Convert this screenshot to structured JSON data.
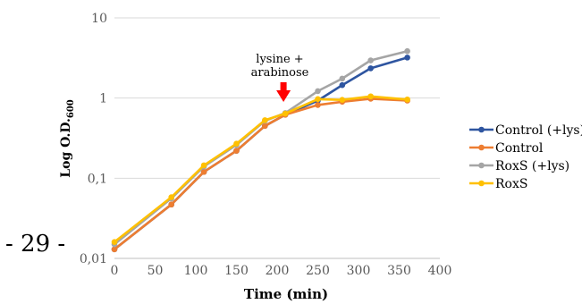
{
  "page_number": "- 29 -",
  "chart_data": {
    "type": "line",
    "title": "",
    "xlabel": "Time (min)",
    "ylabel": {
      "main": "Log O.D.",
      "sub": "600"
    },
    "yscale": "log",
    "xlim": [
      0,
      400
    ],
    "ylim": [
      0.01,
      10
    ],
    "xticks": [
      "0",
      "50",
      "100",
      "150",
      "200",
      "250",
      "300",
      "350",
      "400"
    ],
    "yticks": [
      {
        "value": 0.01,
        "label": "0,01"
      },
      {
        "value": 0.1,
        "label": "0,1"
      },
      {
        "value": 1,
        "label": "1"
      },
      {
        "value": 10,
        "label": "10"
      }
    ],
    "grid": "horizontal",
    "legend_position": "right",
    "annotation": {
      "lines": [
        "lysine +",
        "arabinose"
      ],
      "x": 210,
      "arrow_color": "#ff0000"
    },
    "series": [
      {
        "name": "Control (+lys)",
        "color": "#2e55a0",
        "x": [
          0,
          70,
          110,
          150,
          185,
          210,
          250,
          280,
          315,
          360
        ],
        "y": [
          0.013,
          0.047,
          0.12,
          0.22,
          0.45,
          0.62,
          0.93,
          1.45,
          2.35,
          3.2
        ]
      },
      {
        "name": "Control",
        "color": "#ed7d31",
        "x": [
          0,
          70,
          110,
          150,
          185,
          210,
          250,
          280,
          315,
          360
        ],
        "y": [
          0.013,
          0.047,
          0.12,
          0.22,
          0.45,
          0.62,
          0.82,
          0.9,
          0.98,
          0.93
        ]
      },
      {
        "name": "RoxS (+lys)",
        "color": "#a5a5a5",
        "x": [
          0,
          70,
          110,
          150,
          185,
          210,
          250,
          280,
          315,
          360
        ],
        "y": [
          0.015,
          0.056,
          0.14,
          0.26,
          0.52,
          0.65,
          1.22,
          1.75,
          2.95,
          3.85
        ]
      },
      {
        "name": "RoxS",
        "color": "#ffc000",
        "x": [
          0,
          70,
          110,
          150,
          185,
          210,
          250,
          280,
          315,
          360
        ],
        "y": [
          0.016,
          0.058,
          0.145,
          0.27,
          0.53,
          0.64,
          0.97,
          0.95,
          1.05,
          0.96
        ]
      }
    ]
  }
}
